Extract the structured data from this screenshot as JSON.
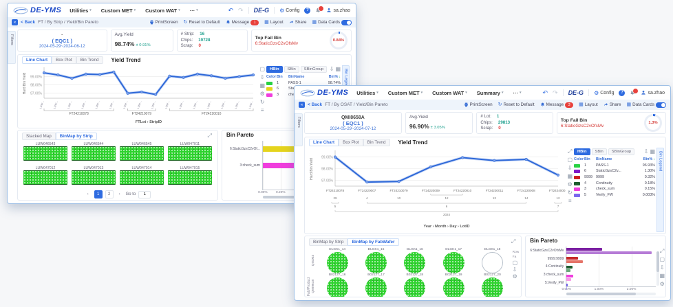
{
  "icons": {
    "caret": "▾",
    "undo": "↶",
    "redo": "↷",
    "gear": "⚙",
    "help": "?",
    "expand": "⤢",
    "download": "⇩",
    "box": "▢",
    "grid": "▦",
    "refresh": "↻",
    "list": "≡",
    "prev": "‹",
    "next": "›",
    "sort": "↓",
    "panel": "«"
  },
  "back": {
    "header": {
      "logo": "DE-YMS",
      "menus": [
        "Utilities",
        "Custom MET",
        "Custom WAT",
        "···"
      ],
      "badge": "DE-G",
      "config": "Config",
      "user": "sa.zhao"
    },
    "breadcrumb": {
      "back": "< Back",
      "path": "FT / By Strip / Yield/Bin Pareto",
      "print": "PrintScreen",
      "reset": "Reset to Default",
      "message": "Message",
      "message_count": "1",
      "layout": "Layout",
      "share": "Share",
      "datacards": "Data Cards"
    },
    "filters_tab": "Filters",
    "bin_legend_tab": "Bin Legend",
    "info": {
      "product": "·",
      "group": "( EQC1 )",
      "daterange": "2024-05-29~2024-06-12",
      "avg_label": "Avg.Yield",
      "avg_value": "98.74%",
      "avg_delta": "± 0.91%",
      "stats": [
        {
          "label": "# Strip:",
          "value": "16",
          "cls": "teal"
        },
        {
          "label": "Chips:",
          "value": "19728",
          "cls": "teal"
        },
        {
          "label": "Scrap:",
          "value": "0",
          "cls": "red"
        }
      ],
      "fail_label": "Top Fail Bin",
      "fail_bin": "6:StaticGzsC2vOfsMv",
      "gauge": "0.84%"
    },
    "trend": {
      "tabs": [
        "Line Chart",
        "Box Plot",
        "Bin Trend"
      ],
      "title": "Yield Trend",
      "bin_buttons": [
        "HBin",
        "SBin",
        "SBinGroup"
      ],
      "chart": {
        "type": "line",
        "ylabel": "Hard Bin Yield",
        "ymin": 96.4,
        "ymax": 99.95,
        "yticks": [
          {
            "v": 99,
            "label": "99.00%"
          },
          {
            "v": 98,
            "label": "98.00%"
          },
          {
            "v": 97,
            "label": "97.00%"
          }
        ],
        "values": [
          99.45,
          99.2,
          98.8,
          99.3,
          99.25,
          99.55,
          97.0,
          97.15,
          96.85,
          99.05,
          98.9,
          99.3,
          99.1,
          98.8,
          99.0,
          99.2
        ],
        "point_labels": [
          "LUW…",
          "LUW…",
          "LUW…",
          "LUW…",
          "LUW…",
          "LUW…",
          "LUW…",
          "LUW…",
          "LUW…",
          "LUW…",
          "LUW…",
          "LUW…",
          "LUW…",
          "LUW…",
          "LUW…",
          "LUW…"
        ],
        "groups": [
          {
            "label": "FT24210078",
            "count": 6
          },
          {
            "label": "FT24210079",
            "count": 3
          },
          {
            "label": "FT24220010",
            "count": 7
          }
        ],
        "caption": "FTLot › StripID"
      },
      "legend": {
        "headers": [
          "Color",
          "Bin",
          "BinName",
          "Bin%"
        ],
        "rows": [
          {
            "color": "#2ad243",
            "bin": "1",
            "name": "PASS-1",
            "pct": "98.74%"
          },
          {
            "color": "#e5d41c",
            "bin": "6",
            "name": "StaticGzsC2vO...",
            "pct": "0.84%"
          },
          {
            "color": "#f03ddd",
            "bin": "3",
            "name": "check_sum",
            "pct": "0.42%"
          }
        ]
      }
    },
    "binmap": {
      "tabs": [
        "Stacked Map",
        "BinMap by Strip"
      ],
      "strips": [
        "LUW046543",
        "LUW046544",
        "LUW046545",
        "LUW047011",
        "LUW047012",
        "LUW047013",
        "LUW047014",
        "LUW047015"
      ],
      "pages": [
        "1",
        "2"
      ],
      "goto_label": "Go to",
      "goto_value": "1"
    },
    "pareto": {
      "title": "Bin Pareto",
      "xmax": 0.88,
      "bars": [
        {
          "label": "6:StaticGzsC2vOf...",
          "value": 0.84,
          "color": "#e5d41c"
        },
        {
          "label": "3:check_sum",
          "value": 0.42,
          "color": "#f03ddd"
        }
      ],
      "xticks": [
        {
          "v": 0,
          "label": "0.00%"
        },
        {
          "v": 0.2,
          "label": "0.20%"
        },
        {
          "v": 0.4,
          "label": "0.40%"
        },
        {
          "v": 0.6,
          "label": "0.60%"
        },
        {
          "v": 0.8,
          "label": "0.80%"
        }
      ]
    }
  },
  "front": {
    "header": {
      "logo": "DE-YMS",
      "menus": [
        "Utilities",
        "Custom MET",
        "Custom WAT",
        "Summary",
        "···"
      ],
      "badge": "DE-G",
      "config": "Config",
      "user": "sa.zhao"
    },
    "breadcrumb": {
      "back": "< Back",
      "path": "FT / By OSAT / Yield/Bin Pareto",
      "print": "PrintScreen",
      "reset": "Reset to Default",
      "message": "Message",
      "message_count": "3",
      "layout": "Layout",
      "share": "Share",
      "datacards": "Data Cards"
    },
    "filters_tab": "Filters",
    "bin_legend_tab": "Bin Legend",
    "info": {
      "product": "QMI8658A",
      "group": "( EQC1 )",
      "daterange": "2024-05-29~2024-07-12",
      "avg_label": "Avg.Yield",
      "avg_value": "96.90%",
      "avg_delta": "± 3.05%",
      "stats": [
        {
          "label": "# Lot:",
          "value": "1",
          "cls": "teal"
        },
        {
          "label": "Chips:",
          "value": "29813",
          "cls": "teal"
        },
        {
          "label": "Scrap:",
          "value": "0",
          "cls": "red"
        }
      ],
      "fail_label": "Top Fail Bin",
      "fail_bin": "6:StaticGzsC2vOfsMv",
      "gauge": "1.3%"
    },
    "trend": {
      "tabs": [
        "Line Chart",
        "Box Plot",
        "Bin Trend"
      ],
      "title": "Yield Trend",
      "bin_buttons": [
        "HBin",
        "SBin",
        "SBinGroup"
      ],
      "chart": {
        "type": "line",
        "ylabel": "Hard Bin Yield",
        "ymin": 96.5,
        "ymax": 99.45,
        "yticks": [
          {
            "v": 99,
            "label": "99.00%"
          },
          {
            "v": 98,
            "label": "98.00%"
          },
          {
            "v": 97,
            "label": "97.00%"
          }
        ],
        "values": [
          99.0,
          96.85,
          96.9,
          98.15,
          98.95,
          98.7,
          98.8,
          97.45
        ],
        "lots": [
          "FT24210078",
          "FT24220007",
          "FT24210079",
          "FT24220009",
          "FT24220010",
          "FT24230011",
          "FT24220008",
          "FT24240001"
        ],
        "days": [
          {
            "span": [
              0,
              0
            ],
            "label": "29"
          },
          {
            "span": [
              1,
              1
            ],
            "label": "4"
          },
          {
            "span": [
              2,
              2
            ],
            "label": "10"
          },
          {
            "span": [
              3,
              4
            ],
            "label": "12"
          },
          {
            "span": [
              5,
              5
            ],
            "label": "13"
          },
          {
            "span": [
              6,
              6
            ],
            "label": "14"
          },
          {
            "span": [
              7,
              7
            ],
            "label": "12"
          }
        ],
        "months": [
          {
            "span": [
              0,
              0
            ],
            "label": "5"
          },
          {
            "span": [
              1,
              6
            ],
            "label": "6"
          },
          {
            "span": [
              7,
              7
            ],
            "label": "7"
          }
        ],
        "year": {
          "span": [
            0,
            7
          ],
          "label": "2024"
        },
        "caption": "Year › Month › Day › LotID"
      },
      "legend": {
        "headers": [
          "Color",
          "Bin",
          "BinName",
          "Bin%"
        ],
        "rows": [
          {
            "color": "#2ad243",
            "bin": "1",
            "name": "PASS-1",
            "pct": "96.93%"
          },
          {
            "color": "#8018c8",
            "bin": "6",
            "name": "StaticGzsC2v...",
            "pct": "1.30%"
          },
          {
            "color": "#cd2020",
            "bin": "9999",
            "name": "9999",
            "pct": "0.32%"
          },
          {
            "color": "#1d5c2e",
            "bin": "4",
            "name": "Continuity",
            "pct": "0.18%"
          },
          {
            "color": "#f03ddd",
            "bin": "3",
            "name": "check_sum",
            "pct": "0.15%"
          },
          {
            "color": "#7b68ee",
            "bin": "5",
            "name": "Verify_FW",
            "pct": "0.003%"
          }
        ]
      }
    },
    "binmap": {
      "tabs": [
        "BinMap by Strip",
        "BinMap by FabWafer"
      ],
      "axis_label": "Fab/Product",
      "side_labels": [
        "Row",
        "Fa"
      ],
      "rows": [
        {
          "fab": "QIS003",
          "wafers": [
            {
              "label": "DLGK1_14"
            },
            {
              "label": "DLGK1_15"
            },
            {
              "label": "DLGK1_16"
            },
            {
              "label": "DLGK1_17"
            },
            {
              "label": "DLGK1_18",
              "empty": true
            }
          ]
        },
        {
          "fab": "QMI9618",
          "wafers": [
            {
              "label": "B02127_16"
            },
            {
              "label": "B02127_17"
            },
            {
              "label": "B02127_18"
            },
            {
              "label": "B02127_19"
            },
            {
              "label": "B02127_20"
            }
          ]
        }
      ]
    },
    "pareto": {
      "title": "Bin Pareto",
      "xmax": 2.75,
      "dual": true,
      "bars": [
        {
          "label": "6:StaticGzsC2vOfsMv",
          "v1": 1.1,
          "v2": 2.62,
          "c1": "#7b1fa2",
          "c2": "#b57bd6"
        },
        {
          "label": "9999:9999",
          "v1": 0.35,
          "v2": 0.5,
          "c1": "#c62828",
          "c2": "#e57368"
        },
        {
          "label": "4:Continuity",
          "v1": 0.18,
          "v2": 0.12,
          "c1": "#1d5c2e",
          "c2": "#6aa97a"
        },
        {
          "label": "3:check_sum",
          "v1": 0.2,
          "v2": 0.15,
          "c1": "#f03ddd",
          "c2": "#f69ae8"
        },
        {
          "label": "5:Verify_FW",
          "v1": 0.03,
          "v2": 0.02,
          "c1": "#6c5ce7",
          "c2": "#a79bf0"
        }
      ],
      "xticks": [
        {
          "v": 0,
          "label": "0.00%"
        },
        {
          "v": 1,
          "label": "1.00%"
        },
        {
          "v": 2,
          "label": "2.00%"
        }
      ]
    }
  }
}
